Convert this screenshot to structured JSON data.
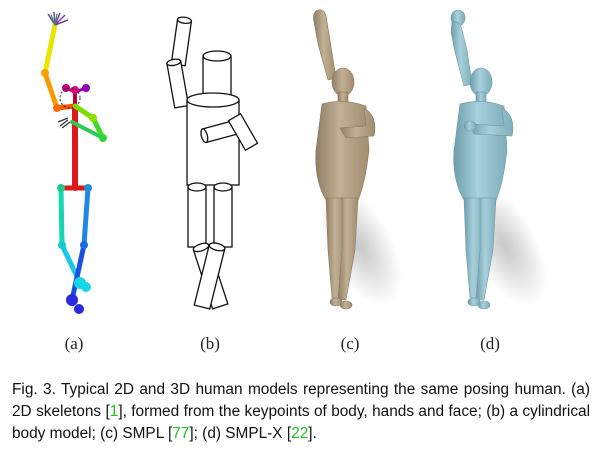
{
  "panels": [
    {
      "label": "(a)"
    },
    {
      "label": "(b)"
    },
    {
      "label": "(c)"
    },
    {
      "label": "(d)"
    }
  ],
  "caption": {
    "prefix": "Fig. 3. Typical 2D and 3D human models representing the same posing human. (a) 2D skeletons [",
    "ref1": "1",
    "part2": "], formed from the keypoints of body, hands and face; (b) a cylindrical body model; (c) SMPL [",
    "ref2": "77",
    "part3": "]; (d) SMPL-X [",
    "ref3": "22",
    "part4": "]."
  },
  "colors": {
    "reference": "#22c222",
    "smpl": "#b9a68a",
    "smplx": "#9cc6d2"
  }
}
